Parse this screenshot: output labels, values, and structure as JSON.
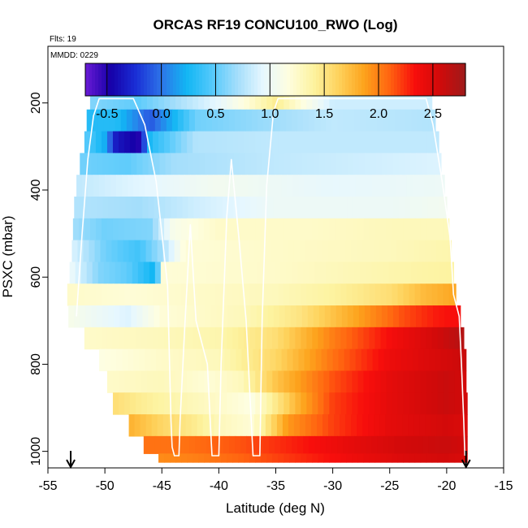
{
  "chart_data": {
    "type": "heatmap",
    "title": "ORCAS RF19 CONCU100_RWO (Log)",
    "flights_label": "Flts: 19",
    "date_label": "MMDD: 0229",
    "xlabel": "Latitude (deg N)",
    "ylabel": "PSXC (mbar)",
    "xlim": [
      -55,
      -15
    ],
    "ylim": [
      1020,
      50
    ],
    "x_ticks": [
      -55,
      -50,
      -45,
      -40,
      -35,
      -30,
      -25,
      -20,
      -15
    ],
    "y_ticks": [
      200,
      400,
      600,
      800,
      1000
    ],
    "colorbar": {
      "range": [
        -0.7,
        2.8
      ],
      "ticks": [
        -0.5,
        0.0,
        0.5,
        1.0,
        1.5,
        2.0,
        2.5
      ],
      "tick_labels": [
        "-0.5",
        "0.0",
        "0.5",
        "1.0",
        "1.5",
        "2.0",
        "2.5"
      ],
      "colors": [
        "#6a1bd6",
        "#1600a8",
        "#1a2fd6",
        "#2d74e8",
        "#12b6f4",
        "#54c9fb",
        "#a4defb",
        "#e6f7ff",
        "#fefee0",
        "#fdf3a0",
        "#fed25c",
        "#fda31c",
        "#ff6410",
        "#f80e0c",
        "#d00a0a",
        "#9e1a1a"
      ]
    },
    "pressure_bins": [
      {
        "p": 190,
        "lat_min": -51.3,
        "lat_max": -21.3,
        "profile": [
          [
            -51.3,
            0.6
          ],
          [
            -47,
            0.5
          ],
          [
            -40,
            0.95
          ],
          [
            -35,
            1.45
          ],
          [
            -30,
            0.85
          ],
          [
            -21.3,
            0.85
          ]
        ]
      },
      {
        "p": 240,
        "lat_min": -51.6,
        "lat_max": -21.0,
        "profile": [
          [
            -51.6,
            0.3
          ],
          [
            -49,
            0.3
          ],
          [
            -46,
            -0.1
          ],
          [
            -42,
            0.55
          ],
          [
            -37,
            0.65
          ],
          [
            -30,
            0.8
          ],
          [
            -21,
            0.75
          ]
        ]
      },
      {
        "p": 290,
        "lat_min": -51.8,
        "lat_max": -20.7,
        "profile": [
          [
            -51.8,
            0.5
          ],
          [
            -50,
            0.2
          ],
          [
            -49,
            -0.35
          ],
          [
            -47,
            -0.5
          ],
          [
            -46,
            0.3
          ],
          [
            -42,
            0.75
          ],
          [
            -35,
            0.8
          ],
          [
            -20.7,
            0.8
          ]
        ]
      },
      {
        "p": 340,
        "lat_min": -52.2,
        "lat_max": -20.5,
        "profile": [
          [
            -52.2,
            0.55
          ],
          [
            -48,
            0.5
          ],
          [
            -44,
            0.7
          ],
          [
            -35,
            0.8
          ],
          [
            -20.5,
            0.9
          ]
        ]
      },
      {
        "p": 390,
        "lat_min": -52.5,
        "lat_max": -20.2,
        "profile": [
          [
            -52.5,
            0.8
          ],
          [
            -48,
            0.9
          ],
          [
            -40,
            1.05
          ],
          [
            -30,
            0.95
          ],
          [
            -20.2,
            1.0
          ]
        ]
      },
      {
        "p": 440,
        "lat_min": -52.7,
        "lat_max": -20.0,
        "profile": [
          [
            -52.7,
            0.75
          ],
          [
            -47,
            0.7
          ],
          [
            -42,
            0.85
          ],
          [
            -35,
            1.0
          ],
          [
            -25,
            1.0
          ],
          [
            -20,
            1.05
          ]
        ]
      },
      {
        "p": 490,
        "lat_min": -52.8,
        "lat_max": -19.8,
        "profile": [
          [
            -52.8,
            0.7
          ],
          [
            -50,
            0.55
          ],
          [
            -46,
            0.6
          ],
          [
            -44,
            1.1
          ],
          [
            -40,
            1.25
          ],
          [
            -32,
            1.25
          ],
          [
            -25,
            1.3
          ],
          [
            -19.8,
            1.3
          ]
        ]
      },
      {
        "p": 540,
        "lat_min": -52.9,
        "lat_max": -19.6,
        "profile": [
          [
            -52.9,
            0.9
          ],
          [
            -50,
            0.55
          ],
          [
            -47,
            0.4
          ],
          [
            -45,
            0.7
          ],
          [
            -43,
            1.2
          ],
          [
            -35,
            1.25
          ],
          [
            -25,
            1.3
          ],
          [
            -19.6,
            1.35
          ]
        ]
      },
      {
        "p": 590,
        "lat_min": -53.1,
        "lat_max": -19.4,
        "profile": [
          [
            -53.1,
            1.0
          ],
          [
            -50.5,
            0.6
          ],
          [
            -48,
            0.5
          ],
          [
            -45.5,
            0.2
          ],
          [
            -45,
            1.2
          ],
          [
            -35,
            1.25
          ],
          [
            -25,
            1.35
          ],
          [
            -19.4,
            1.4
          ]
        ]
      },
      {
        "p": 640,
        "lat_min": -53.3,
        "lat_max": -19.2,
        "profile": [
          [
            -53.3,
            1.25
          ],
          [
            -48,
            1.2
          ],
          [
            -42,
            1.25
          ],
          [
            -35,
            1.3
          ],
          [
            -30,
            1.4
          ],
          [
            -25,
            1.55
          ],
          [
            -22,
            1.75
          ],
          [
            -19.2,
            1.85
          ]
        ]
      },
      {
        "p": 690,
        "lat_min": -53.2,
        "lat_max": -18.8,
        "profile": [
          [
            -53.2,
            1.1
          ],
          [
            -48,
            0.9
          ],
          [
            -45,
            1.2
          ],
          [
            -38,
            1.3
          ],
          [
            -33,
            1.5
          ],
          [
            -28,
            1.85
          ],
          [
            -24,
            2.15
          ],
          [
            -21,
            2.3
          ],
          [
            -18.8,
            2.35
          ]
        ]
      },
      {
        "p": 740,
        "lat_min": -51.8,
        "lat_max": -18.5,
        "profile": [
          [
            -51.8,
            1.25
          ],
          [
            -45,
            1.3
          ],
          [
            -40,
            1.35
          ],
          [
            -35,
            1.55
          ],
          [
            -30,
            2.0
          ],
          [
            -25,
            2.35
          ],
          [
            -21,
            2.55
          ],
          [
            -18.5,
            2.7
          ]
        ]
      },
      {
        "p": 790,
        "lat_min": -50.5,
        "lat_max": -18.3,
        "profile": [
          [
            -50.5,
            1.15
          ],
          [
            -45,
            1.25
          ],
          [
            -40,
            1.3
          ],
          [
            -35,
            1.6
          ],
          [
            -30,
            2.05
          ],
          [
            -25,
            2.4
          ],
          [
            -20,
            2.55
          ],
          [
            -18.3,
            2.6
          ]
        ]
      },
      {
        "p": 840,
        "lat_min": -49.8,
        "lat_max": -18.3,
        "profile": [
          [
            -49.8,
            1.25
          ],
          [
            -45,
            1.3
          ],
          [
            -41,
            1.2
          ],
          [
            -38,
            1.3
          ],
          [
            -35,
            1.7
          ],
          [
            -30,
            2.15
          ],
          [
            -25,
            2.45
          ],
          [
            -20,
            2.6
          ],
          [
            -18.3,
            2.55
          ]
        ]
      },
      {
        "p": 890,
        "lat_min": -49.3,
        "lat_max": -18.2,
        "profile": [
          [
            -49.3,
            1.55
          ],
          [
            -47,
            1.45
          ],
          [
            -44,
            1.35
          ],
          [
            -40,
            1.25
          ],
          [
            -37,
            1.15
          ],
          [
            -33,
            1.8
          ],
          [
            -30,
            2.2
          ],
          [
            -25,
            2.45
          ],
          [
            -20,
            2.6
          ],
          [
            -18.2,
            2.55
          ]
        ]
      },
      {
        "p": 940,
        "lat_min": -47.9,
        "lat_max": -18.2,
        "profile": [
          [
            -47.9,
            1.8
          ],
          [
            -45,
            1.6
          ],
          [
            -42,
            1.45
          ],
          [
            -40,
            1.3
          ],
          [
            -37,
            1.2
          ],
          [
            -34,
            1.9
          ],
          [
            -30,
            2.2
          ],
          [
            -25,
            2.45
          ],
          [
            -20,
            2.55
          ],
          [
            -18.2,
            2.5
          ]
        ]
      },
      {
        "p": 990,
        "lat_min": -46.6,
        "lat_max": -18.2,
        "profile": [
          [
            -46.6,
            2.05
          ],
          [
            -43,
            2.05
          ],
          [
            -38,
            2.15
          ],
          [
            -33,
            2.3
          ],
          [
            -28,
            2.45
          ],
          [
            -24,
            2.55
          ],
          [
            -20,
            2.6
          ],
          [
            -18.2,
            2.55
          ]
        ]
      },
      {
        "p": 1020,
        "lat_min": -45.3,
        "lat_max": -18.2,
        "profile": [
          [
            -45.3,
            1.95
          ],
          [
            -42,
            2.0
          ],
          [
            -38,
            2.1
          ],
          [
            -33,
            2.25
          ],
          [
            -28,
            2.4
          ],
          [
            -24,
            2.5
          ],
          [
            -20,
            2.55
          ],
          [
            -18.2,
            2.5
          ]
        ]
      }
    ],
    "flight_track": [
      [
        -52.5,
        690
      ],
      [
        -52,
        500
      ],
      [
        -51.5,
        330
      ],
      [
        -51,
        230
      ],
      [
        -50.5,
        190
      ],
      [
        -47.5,
        190
      ],
      [
        -46.5,
        250
      ],
      [
        -45.5,
        380
      ],
      [
        -44.5,
        620
      ],
      [
        -44.2,
        930
      ],
      [
        -44.1,
        990
      ],
      [
        -43.9,
        1010
      ],
      [
        -43.5,
        1010
      ],
      [
        -43.4,
        930
      ],
      [
        -43.0,
        720
      ],
      [
        -42.5,
        480
      ],
      [
        -42.0,
        700
      ],
      [
        -41.0,
        800
      ],
      [
        -40.7,
        960
      ],
      [
        -40.6,
        1010
      ],
      [
        -40.0,
        1010
      ],
      [
        -39.8,
        800
      ],
      [
        -39.3,
        460
      ],
      [
        -38.9,
        330
      ],
      [
        -38.2,
        520
      ],
      [
        -37.6,
        700
      ],
      [
        -37.0,
        1010
      ],
      [
        -36.4,
        1010
      ],
      [
        -36.2,
        700
      ],
      [
        -35.8,
        390
      ],
      [
        -35.2,
        220
      ],
      [
        -34.8,
        190
      ],
      [
        -24.6,
        190
      ],
      [
        -21.8,
        190
      ],
      [
        -21.2,
        250
      ],
      [
        -20.4,
        380
      ],
      [
        -19.7,
        510
      ],
      [
        -19.4,
        640
      ],
      [
        -18.9,
        690
      ],
      [
        -18.7,
        800
      ],
      [
        -18.5,
        930
      ],
      [
        -18.4,
        1010
      ]
    ],
    "arrow_left_lat": -53,
    "arrow_right_lat": -18.3
  }
}
